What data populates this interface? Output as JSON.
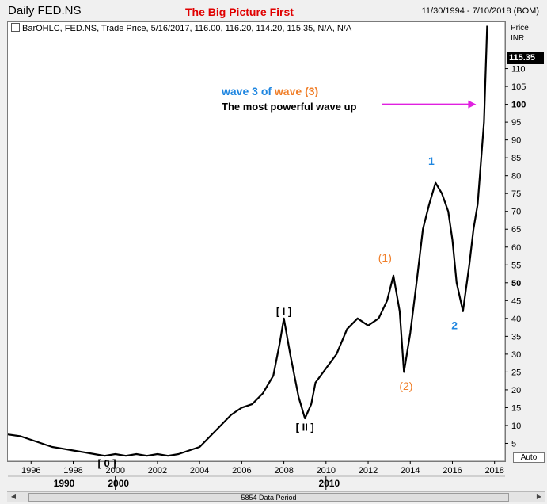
{
  "header": {
    "app_title": "Daily FED.NS",
    "headline": "The Big Picture First",
    "date_range": "11/30/1994 - 7/10/2018 (BOM)"
  },
  "legend": {
    "text": "BarOHLC, FED.NS, Trade Price, 5/16/2017, 116.00, 116.20, 114.20, 115.35, N/A, N/A"
  },
  "price_axis": {
    "label": "Price",
    "unit": "INR",
    "last_price": "115.35"
  },
  "auto_button": "Auto",
  "scrollbar": {
    "label": "5854 Data Period"
  },
  "colors": {
    "price_line": "#000000",
    "headline": "#e00000",
    "wave_blue": "#1f86e0",
    "wave_orange": "#f07f2a",
    "arrow": "#e020e0"
  },
  "chart_data": {
    "type": "line",
    "title": "The Big Picture First",
    "xlabel": "",
    "ylabel": "Price",
    "y_unit": "INR",
    "xlim": [
      1994.9,
      2018.5
    ],
    "ylim": [
      0,
      123
    ],
    "y_ticks": [
      5,
      10,
      15,
      20,
      25,
      30,
      35,
      40,
      45,
      50,
      55,
      60,
      65,
      70,
      75,
      80,
      85,
      90,
      95,
      100,
      105,
      110
    ],
    "y_tick_labels": [
      "5",
      "10",
      "15",
      "20",
      "25",
      "30",
      "35",
      "40",
      "45",
      "50",
      "55",
      "60",
      "65",
      "70",
      "75",
      "80",
      "85",
      "90",
      "95",
      "100",
      "105",
      "110"
    ],
    "x_ticks": [
      1996,
      1998,
      2000,
      2002,
      2004,
      2006,
      2008,
      2010,
      2012,
      2014,
      2016,
      2018
    ],
    "x_tick_labels": [
      "1996",
      "1998",
      "2000",
      "2002",
      "2004",
      "2006",
      "2008",
      "2010",
      "2012",
      "2014",
      "2016",
      "2018"
    ],
    "decade_labels": [
      {
        "x": 1990,
        "label": "1990"
      },
      {
        "x": 2000,
        "label": "2000"
      },
      {
        "x": 2010,
        "label": "2010"
      }
    ],
    "grid": false,
    "series": [
      {
        "x": [
          1994.9,
          1995.5,
          1996.0,
          1996.5,
          1997.0,
          1997.5,
          1998.0,
          1998.5,
          1999.0,
          1999.5,
          2000.0,
          2000.5,
          2001.0,
          2001.5,
          2002.0,
          2002.5,
          2003.0,
          2003.5,
          2004.0,
          2004.5,
          2005.0,
          2005.5,
          2006.0,
          2006.5,
          2007.0,
          2007.5,
          2007.8,
          2008.0,
          2008.3,
          2008.7,
          2009.0,
          2009.3,
          2009.5,
          2010.0,
          2010.5,
          2011.0,
          2011.5,
          2012.0,
          2012.5,
          2012.9,
          2013.2,
          2013.5,
          2013.7,
          2014.0,
          2014.3,
          2014.6,
          2014.9,
          2015.2,
          2015.5,
          2015.8,
          2016.0,
          2016.2,
          2016.5,
          2016.8,
          2017.0,
          2017.2,
          2017.37,
          2017.5,
          2017.65
        ],
        "y": [
          7.5,
          7,
          6,
          5,
          4,
          3.5,
          3,
          2.5,
          2,
          1.5,
          2,
          1.5,
          2,
          1.5,
          2,
          1.5,
          2,
          3,
          4,
          7,
          10,
          13,
          15,
          16,
          19,
          24,
          33,
          40,
          30,
          18,
          12,
          16,
          22,
          26,
          30,
          37,
          40,
          38,
          40,
          45,
          52,
          42,
          25,
          36,
          50,
          65,
          72,
          78,
          75,
          70,
          62,
          50,
          42,
          55,
          65,
          72,
          85,
          95,
          122
        ]
      }
    ],
    "annotations": [
      {
        "x": 2008.0,
        "y": 41,
        "label": "[ I ]"
      },
      {
        "x": 2009.0,
        "y": 8.5,
        "label": "[ II ]"
      },
      {
        "x": 1999.6,
        "y": -1.5,
        "label": "[ 0 ]"
      },
      {
        "x": 2012.8,
        "y": 56,
        "label": "(1)"
      },
      {
        "x": 2013.8,
        "y": 20,
        "label": "(2)"
      },
      {
        "x": 2015.0,
        "y": 83,
        "label": "1"
      },
      {
        "x": 2016.1,
        "y": 37,
        "label": "2"
      }
    ],
    "note": {
      "line1_parts": [
        {
          "text": "wave 3 of ",
          "color": "#1f86e0"
        },
        {
          "text": "wave ",
          "color": "#f07f2a"
        },
        {
          "text": "(3)",
          "color": "#f07f2a"
        }
      ],
      "line2": "The most powerful wave up",
      "arrow_target": {
        "x": 2017.2,
        "y": 100
      }
    }
  }
}
